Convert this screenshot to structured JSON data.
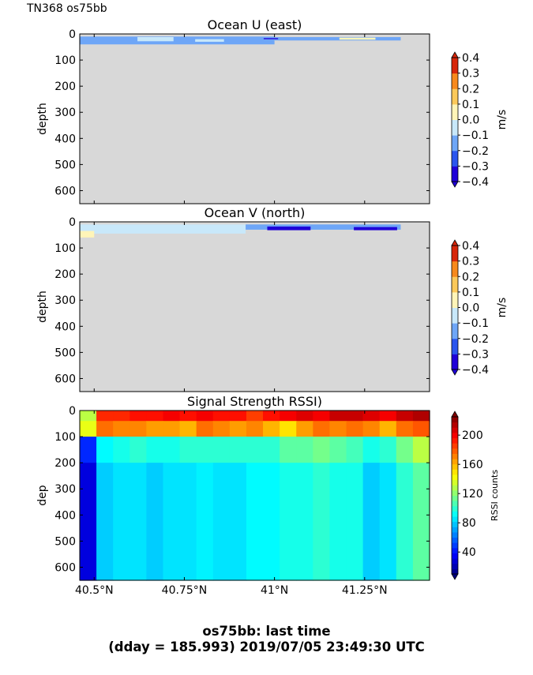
{
  "figure": {
    "corner_title": "TN368 os75bb",
    "suptitle_line1": "os75bb: last time",
    "suptitle_line2": "(dday = 185.993) 2019/07/05 23:49:30 UTC"
  },
  "chart_data": [
    {
      "type": "heatmap",
      "title": "Ocean U (east)",
      "ylabel": "depth",
      "colorbar_label": "m/s",
      "colorbar_ticks": [
        "0.4",
        "0.3",
        "0.2",
        "0.1",
        "0.0",
        "−0.1",
        "−0.2",
        "−0.3",
        "−0.4"
      ],
      "clim": [
        -0.4,
        0.4
      ],
      "xlim": [
        40.46,
        41.43
      ],
      "ylim": [
        650,
        0
      ],
      "yticks": [
        0,
        100,
        200,
        300,
        400,
        500,
        600
      ],
      "missing_color": "#d8d8d8",
      "valid_depth_range": [
        0,
        40
      ],
      "visible_patches": [
        {
          "x": [
            40.46,
            41.0
          ],
          "depth": [
            10,
            40
          ],
          "value": -0.2
        },
        {
          "x": [
            41.0,
            41.35
          ],
          "depth": [
            12,
            25
          ],
          "value": -0.2
        },
        {
          "x": [
            40.62,
            40.72
          ],
          "depth": [
            12,
            28
          ],
          "value": -0.08
        },
        {
          "x": [
            40.78,
            40.86
          ],
          "depth": [
            20,
            30
          ],
          "value": -0.08
        },
        {
          "x": [
            41.18,
            41.28
          ],
          "depth": [
            14,
            22
          ],
          "value": 0.08
        },
        {
          "x": [
            40.97,
            41.01
          ],
          "depth": [
            16,
            20
          ],
          "value": -0.35
        }
      ]
    },
    {
      "type": "heatmap",
      "title": "Ocean V (north)",
      "ylabel": "depth",
      "colorbar_label": "m/s",
      "colorbar_ticks": [
        "0.4",
        "0.3",
        "0.2",
        "0.1",
        "0.0",
        "−0.1",
        "−0.2",
        "−0.3",
        "−0.4"
      ],
      "clim": [
        -0.4,
        0.4
      ],
      "xlim": [
        40.46,
        41.43
      ],
      "ylim": [
        650,
        0
      ],
      "yticks": [
        0,
        100,
        200,
        300,
        400,
        500,
        600
      ],
      "missing_color": "#d8d8d8",
      "valid_depth_range": [
        0,
        45
      ],
      "visible_patches": [
        {
          "x": [
            40.46,
            40.92
          ],
          "depth": [
            10,
            45
          ],
          "value": -0.08
        },
        {
          "x": [
            40.92,
            41.35
          ],
          "depth": [
            10,
            30
          ],
          "value": -0.2
        },
        {
          "x": [
            40.46,
            40.5
          ],
          "depth": [
            35,
            60
          ],
          "value": 0.05
        },
        {
          "x": [
            40.98,
            41.1
          ],
          "depth": [
            18,
            32
          ],
          "value": -0.38
        },
        {
          "x": [
            41.22,
            41.34
          ],
          "depth": [
            20,
            32
          ],
          "value": -0.38
        }
      ]
    },
    {
      "type": "heatmap",
      "title": "Signal Strength RSSI)",
      "ylabel": "dep",
      "colorbar_label": "RSSI counts",
      "colorbar_ticks": [
        "200",
        "160",
        "120",
        "80",
        "40"
      ],
      "clim": [
        10,
        225
      ],
      "xlim": [
        40.46,
        41.43
      ],
      "ylim": [
        650,
        0
      ],
      "yticks": [
        0,
        100,
        200,
        300,
        400,
        500,
        600
      ],
      "xticks": [
        "40.5°N",
        "40.75°N",
        "41°N",
        "41.25°N"
      ],
      "xtick_values": [
        40.5,
        40.75,
        41.0,
        41.25
      ],
      "deep_profile": [
        {
          "depth_from": 0,
          "depth_to": 40,
          "values": [
            130,
            190,
            190,
            195,
            195,
            200,
            195,
            200,
            195,
            195,
            185,
            195,
            200,
            205,
            200,
            210,
            210,
            205,
            200,
            210,
            215
          ]
        },
        {
          "depth_from": 40,
          "depth_to": 100,
          "values": [
            140,
            175,
            170,
            170,
            165,
            165,
            160,
            175,
            170,
            165,
            170,
            160,
            150,
            165,
            175,
            170,
            175,
            170,
            160,
            175,
            180
          ]
        },
        {
          "depth_from": 100,
          "depth_to": 200,
          "values": [
            45,
            90,
            95,
            100,
            95,
            95,
            100,
            100,
            100,
            100,
            100,
            100,
            110,
            110,
            115,
            110,
            105,
            95,
            100,
            115,
            130
          ]
        },
        {
          "depth_from": 200,
          "depth_to": 650,
          "values": [
            30,
            80,
            85,
            85,
            80,
            85,
            85,
            88,
            85,
            85,
            90,
            90,
            95,
            95,
            100,
            95,
            95,
            80,
            85,
            100,
            110
          ]
        }
      ]
    }
  ]
}
